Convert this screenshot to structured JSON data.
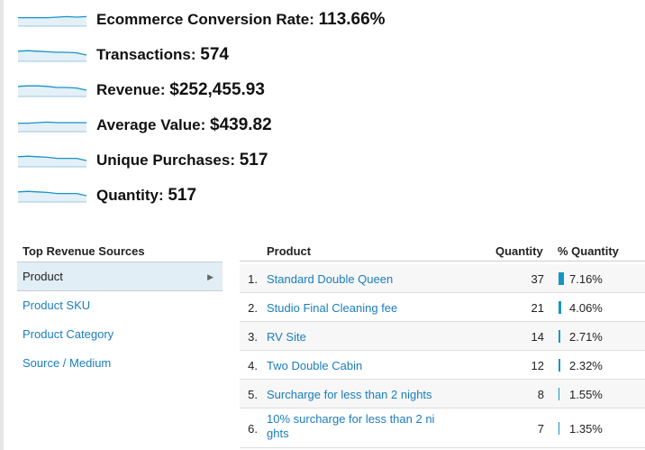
{
  "metrics": [
    {
      "label": "Ecommerce Conversion Rate:",
      "value": "113.66%",
      "trend": [
        0.55,
        0.55,
        0.55,
        0.55,
        0.5,
        0.45,
        0.5,
        0.45
      ]
    },
    {
      "label": "Transactions:",
      "value": "574",
      "trend": [
        0.4,
        0.35,
        0.4,
        0.45,
        0.5,
        0.5,
        0.55,
        0.75
      ]
    },
    {
      "label": "Revenue:",
      "value": "$252,455.93",
      "trend": [
        0.4,
        0.35,
        0.35,
        0.4,
        0.5,
        0.5,
        0.55,
        0.75
      ]
    },
    {
      "label": "Average Value:",
      "value": "$439.82",
      "trend": [
        0.55,
        0.55,
        0.5,
        0.45,
        0.5,
        0.5,
        0.5,
        0.5
      ]
    },
    {
      "label": "Unique Purchases:",
      "value": "517",
      "trend": [
        0.4,
        0.35,
        0.4,
        0.45,
        0.55,
        0.55,
        0.55,
        0.75
      ]
    },
    {
      "label": "Quantity:",
      "value": "517",
      "trend": [
        0.4,
        0.35,
        0.4,
        0.45,
        0.55,
        0.55,
        0.55,
        0.75
      ]
    }
  ],
  "sources": {
    "title": "Top Revenue Sources",
    "items": [
      "Product",
      "Product SKU",
      "Product Category",
      "Source / Medium"
    ],
    "active_index": 0
  },
  "table": {
    "headers": {
      "product": "Product",
      "quantity": "Quantity",
      "pct": "% Quantity"
    },
    "rows": [
      {
        "n": "1.",
        "product": "Standard Double Queen",
        "qty": "37",
        "pct": "7.16%",
        "share": 7.16
      },
      {
        "n": "2.",
        "product": "Studio Final Cleaning fee",
        "qty": "21",
        "pct": "4.06%",
        "share": 4.06
      },
      {
        "n": "3.",
        "product": "RV Site",
        "qty": "14",
        "pct": "2.71%",
        "share": 2.71
      },
      {
        "n": "4.",
        "product": "Two Double Cabin",
        "qty": "12",
        "pct": "2.32%",
        "share": 2.32
      },
      {
        "n": "5.",
        "product": "Surcharge for less than 2 nights",
        "qty": "8",
        "pct": "1.55%",
        "share": 1.55
      },
      {
        "n": "6.",
        "product": "10% surcharge for less than 2 ni ghts",
        "qty": "7",
        "pct": "1.35%",
        "share": 1.35
      }
    ]
  },
  "colors": {
    "link": "#1a7dbe",
    "spark": "#1694c6",
    "spark_fill": "#e3f0f7",
    "active_bg": "#e1eef5"
  }
}
